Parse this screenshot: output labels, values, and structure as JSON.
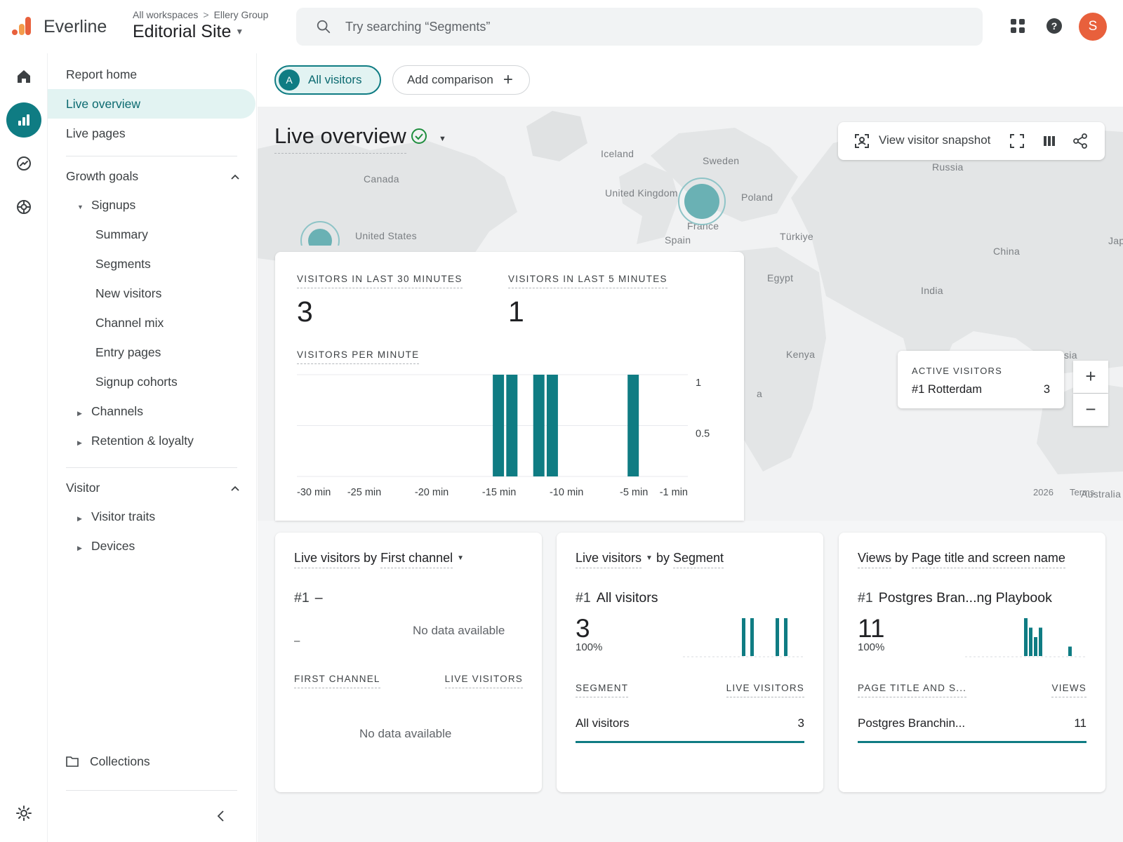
{
  "app": {
    "brand": "Everline",
    "breadcrumb": [
      "All workspaces",
      "Ellery Group"
    ],
    "property": "Editorial Site",
    "search_placeholder": "Try searching “Segments”",
    "avatar_initial": "S",
    "accent_color": "#0f7c83",
    "avatar_color": "#e8603c"
  },
  "rail": {
    "items": [
      "home-icon",
      "reports-icon",
      "explore-icon",
      "advertising-icon",
      "settings-icon"
    ],
    "active": "reports-icon"
  },
  "sidebar": {
    "top_items": [
      "Report home",
      "Live overview",
      "Live pages"
    ],
    "active": "Live overview",
    "sections": [
      {
        "title": "Growth goals",
        "groups": [
          {
            "label": "Signups",
            "expanded": true,
            "children": [
              "Summary",
              "Segments",
              "New visitors",
              "Channel mix",
              "Entry pages",
              "Signup cohorts"
            ]
          },
          {
            "label": "Channels",
            "expanded": false
          },
          {
            "label": "Retention & loyalty",
            "expanded": false
          }
        ]
      },
      {
        "title": "Visitor",
        "groups": [
          {
            "label": "Visitor traits",
            "expanded": false
          },
          {
            "label": "Devices",
            "expanded": false
          }
        ]
      }
    ],
    "collections": "Collections"
  },
  "comparison": {
    "chip_badge": "A",
    "chip_label": "All visitors",
    "add_label": "Add comparison"
  },
  "report": {
    "title": "Live overview",
    "toolbar": {
      "snapshot_label": "View visitor snapshot"
    }
  },
  "map": {
    "labels": [
      "Iceland",
      "Sweden",
      "Russia",
      "Canada",
      "United Kingdom",
      "Poland",
      "United States",
      "France",
      "Spain",
      "Türkiye",
      "China",
      "Jap",
      "Egypt",
      "India",
      "Kenya",
      "sia",
      "a",
      "Australia"
    ],
    "attribution": [
      "2026",
      "Terms"
    ],
    "active_visitors": {
      "label": "ACTIVE VISITORS",
      "city": "#1 Rotterdam",
      "count": "3"
    }
  },
  "stats": {
    "kpis": [
      {
        "label": "VISITORS IN LAST 30 MINUTES",
        "value": "3"
      },
      {
        "label": "VISITORS IN LAST 5 MINUTES",
        "value": "1"
      }
    ]
  },
  "chart_data": {
    "type": "bar",
    "title": "VISITORS PER MINUTE",
    "x_tick_labels": [
      "-30 min",
      "-25 min",
      "-20 min",
      "-15 min",
      "-10 min",
      "-5 min",
      "-1 min"
    ],
    "y_tick_labels": [
      "1",
      "0.5"
    ],
    "ylim": [
      0,
      1
    ],
    "minutes_ago": [
      -15,
      -14,
      -12,
      -11,
      -5
    ],
    "values": [
      1,
      1,
      1,
      1,
      1
    ],
    "color": "#0f7c83",
    "grid": true
  },
  "cards": [
    {
      "title_metric": "Live visitors",
      "title_by": "by",
      "title_dim": "First channel",
      "rank": "#1",
      "rank_name": "–",
      "value": "–",
      "chart_empty": "No data available",
      "col_left": "FIRST CHANNEL",
      "col_right": "LIVE VISITORS",
      "table_empty": "No data available"
    },
    {
      "title_metric": "Live visitors",
      "title_by": "by",
      "title_dim": "Segment",
      "rank": "#1",
      "rank_name": "All visitors",
      "value": "3",
      "percent": "100%",
      "col_left": "SEGMENT",
      "col_right": "LIVE VISITORS",
      "row_name": "All visitors",
      "row_value": "3",
      "spark_values": [
        1,
        1,
        0,
        0,
        1,
        1,
        0,
        0,
        0,
        1
      ]
    },
    {
      "title_metric": "Views",
      "title_by": "by",
      "title_dim": "Page title and screen name",
      "rank": "#1",
      "rank_name": "Postgres Bran...ng Playbook",
      "value": "11",
      "percent": "100%",
      "col_left": "PAGE TITLE AND S...",
      "col_right": "VIEWS",
      "row_name": "Postgres Branchin...",
      "row_value": "11",
      "spark_values": [
        4,
        3,
        2,
        3,
        0,
        0,
        0,
        0,
        0,
        1
      ]
    }
  ]
}
